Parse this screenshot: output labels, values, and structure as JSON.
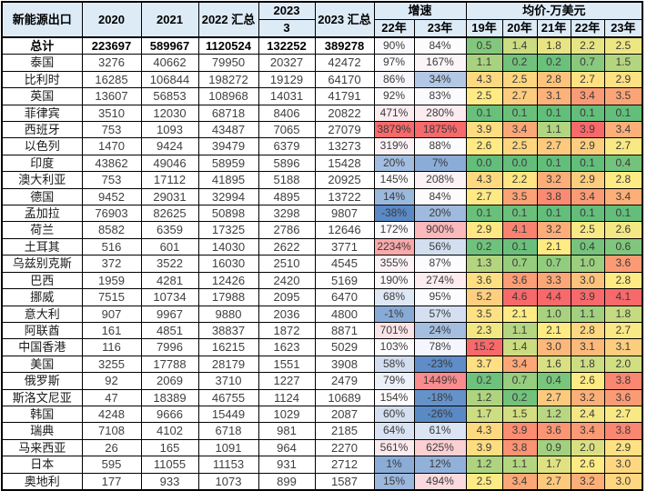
{
  "table": {
    "header": {
      "row1": [
        {
          "label": "新能源出口",
          "rowspan": 2
        },
        {
          "label": "2020",
          "rowspan": 2
        },
        {
          "label": "2021",
          "rowspan": 2
        },
        {
          "label": "2022 汇总",
          "rowspan": 2,
          "wrap": true
        },
        {
          "label": "2023"
        },
        {
          "label": "2023 汇总",
          "rowspan": 2,
          "wrap": true
        },
        {
          "label": "增速",
          "colspan": 2
        },
        {
          "label": "均价-万美元",
          "colspan": 5
        }
      ],
      "row2": [
        "3",
        "22年",
        "23年",
        "19年",
        "20年",
        "21年",
        "22年",
        "23年"
      ]
    },
    "colors": {
      "header_bg": "#DDEBF7",
      "border": "#000000",
      "scale_blue": "#5A8AC6",
      "scale_white": "#FCFCFF",
      "scale_red": "#F8696B",
      "scale_green": "#63BE7B",
      "scale_yellow": "#FFEB84"
    },
    "rows": [
      {
        "name": "总计",
        "bold": true,
        "values": [
          223697,
          589967,
          1120524,
          132252,
          389278
        ],
        "growth": [
          90,
          84
        ],
        "price": [
          0.5,
          1.4,
          1.8,
          2.2,
          2.5
        ]
      },
      {
        "name": "泰国",
        "values": [
          3276,
          40662,
          79950,
          20327,
          42472
        ],
        "growth": [
          97,
          167
        ],
        "price": [
          1.1,
          0.2,
          0.2,
          0.7,
          1.5
        ]
      },
      {
        "name": "比利时",
        "values": [
          16285,
          106844,
          198272,
          19129,
          64170
        ],
        "growth": [
          86,
          34
        ],
        "price": [
          4.3,
          2.5,
          2.8,
          2.7,
          2.9
        ]
      },
      {
        "name": "英国",
        "values": [
          13607,
          56853,
          108968,
          14031,
          41791
        ],
        "growth": [
          92,
          83
        ],
        "price": [
          2.5,
          2.7,
          3.1,
          3.4,
          3.5
        ]
      },
      {
        "name": "菲律宾",
        "values": [
          3510,
          12030,
          68718,
          8406,
          20822
        ],
        "growth": [
          471,
          280
        ],
        "price": [
          0.1,
          0.1,
          0.1,
          0.1,
          0.1
        ]
      },
      {
        "name": "西班牙",
        "values": [
          753,
          1093,
          43487,
          7065,
          27079
        ],
        "growth": [
          3879,
          1875
        ],
        "price": [
          3.9,
          3.4,
          1.1,
          3.9,
          3.4
        ]
      },
      {
        "name": "以色列",
        "values": [
          1470,
          9424,
          39479,
          6379,
          13273
        ],
        "growth": [
          319,
          88
        ],
        "price": [
          2.6,
          2.5,
          2.7,
          2.9,
          2.7
        ]
      },
      {
        "name": "印度",
        "values": [
          43862,
          49046,
          58959,
          5896,
          15428
        ],
        "growth": [
          20,
          7
        ],
        "price": [
          0.0,
          0.0,
          0.1,
          0.1,
          0.4
        ]
      },
      {
        "name": "澳大利亚",
        "values": [
          753,
          17112,
          41895,
          5188,
          20925
        ],
        "growth": [
          145,
          208
        ],
        "price": [
          4.3,
          2.2,
          3.2,
          2.9,
          2.8
        ]
      },
      {
        "name": "德国",
        "values": [
          9452,
          29031,
          32994,
          4895,
          13722
        ],
        "growth": [
          14,
          84
        ],
        "price": [
          2.7,
          3.5,
          3.8,
          3.4,
          3.4
        ]
      },
      {
        "name": "孟加拉",
        "values": [
          76903,
          82625,
          50898,
          3298,
          9807
        ],
        "growth": [
          -38,
          20
        ],
        "price": [
          0.1,
          0.1,
          0.1,
          0.1,
          0.1
        ]
      },
      {
        "name": "荷兰",
        "values": [
          8582,
          6359,
          17325,
          2786,
          12646
        ],
        "growth": [
          172,
          900
        ],
        "price": [
          2.9,
          4.1,
          3.2,
          2.5,
          2.6
        ]
      },
      {
        "name": "土耳其",
        "values": [
          516,
          601,
          14030,
          2622,
          3771
        ],
        "growth": [
          2234,
          56
        ],
        "price": [
          0.2,
          0.1,
          2.1,
          0.4,
          0.6
        ]
      },
      {
        "name": "乌兹别克斯",
        "values": [
          372,
          3522,
          16030,
          2510,
          4545
        ],
        "growth": [
          355,
          87
        ],
        "price": [
          1.3,
          0.7,
          0.7,
          1.0,
          3.6
        ]
      },
      {
        "name": "巴西",
        "values": [
          1959,
          4281,
          12426,
          2420,
          5169
        ],
        "growth": [
          190,
          274
        ],
        "price": [
          3.6,
          3.6,
          3.3,
          3.0,
          2.8
        ]
      },
      {
        "name": "挪威",
        "values": [
          7515,
          10734,
          17988,
          2095,
          6470
        ],
        "growth": [
          68,
          95
        ],
        "price": [
          5.2,
          4.6,
          4.4,
          3.9,
          4.1
        ]
      },
      {
        "name": "意大利",
        "values": [
          907,
          9967,
          9880,
          2036,
          4800
        ],
        "growth": [
          -1,
          57
        ],
        "price": [
          3.5,
          2.1,
          1.0,
          1.1,
          1.8
        ]
      },
      {
        "name": "阿联酋",
        "values": [
          161,
          4851,
          38837,
          1872,
          8871
        ],
        "growth": [
          701,
          24
        ],
        "price": [
          2.3,
          1.1,
          2.1,
          2.8,
          2.7
        ]
      },
      {
        "name": "中国香港",
        "values": [
          116,
          7996,
          16215,
          1623,
          5029
        ],
        "growth": [
          103,
          78
        ],
        "price": [
          15.2,
          1.4,
          3.0,
          3.1,
          3.1
        ]
      },
      {
        "name": "美国",
        "values": [
          3255,
          17788,
          28179,
          1551,
          3908
        ],
        "growth": [
          58,
          -23
        ],
        "price": [
          3.7,
          3.4,
          1.6,
          1.8,
          2.0
        ]
      },
      {
        "name": "俄罗斯",
        "values": [
          92,
          2069,
          3710,
          1227,
          2479
        ],
        "growth": [
          79,
          1449
        ],
        "price": [
          0.2,
          0.7,
          0.4,
          2.6,
          3.8
        ]
      },
      {
        "name": "斯洛文尼亚",
        "values": [
          47,
          18389,
          46755,
          1124,
          10689
        ],
        "growth": [
          154,
          -18
        ],
        "price": [
          1.2,
          0.2,
          2.7,
          3.2,
          3.6
        ]
      },
      {
        "name": "韩国",
        "values": [
          4248,
          9666,
          15449,
          1029,
          2087
        ],
        "growth": [
          60,
          -26
        ],
        "price": [
          1.7,
          1.5,
          1.2,
          2.4,
          2.7
        ]
      },
      {
        "name": "瑞典",
        "values": [
          7108,
          4102,
          6718,
          981,
          2185
        ],
        "growth": [
          64,
          61
        ],
        "price": [
          4.3,
          3.9,
          3.6,
          3.4,
          3.8
        ]
      },
      {
        "name": "马来西亚",
        "values": [
          26,
          165,
          1091,
          964,
          2270
        ],
        "growth": [
          561,
          625
        ],
        "price": [
          3.9,
          3.8,
          0.9,
          2.0,
          2.9
        ]
      },
      {
        "name": "日本",
        "values": [
          595,
          11055,
          11153,
          931,
          2712
        ],
        "growth": [
          1,
          12
        ],
        "price": [
          1.2,
          1.1,
          1.7,
          2.6,
          3.0
        ]
      },
      {
        "name": "奥地利",
        "values": [
          177,
          933,
          1073,
          899,
          1587
        ],
        "growth": [
          15,
          494
        ],
        "price": [
          2.5,
          3.4,
          2.7,
          3.2,
          3.0
        ]
      }
    ]
  }
}
